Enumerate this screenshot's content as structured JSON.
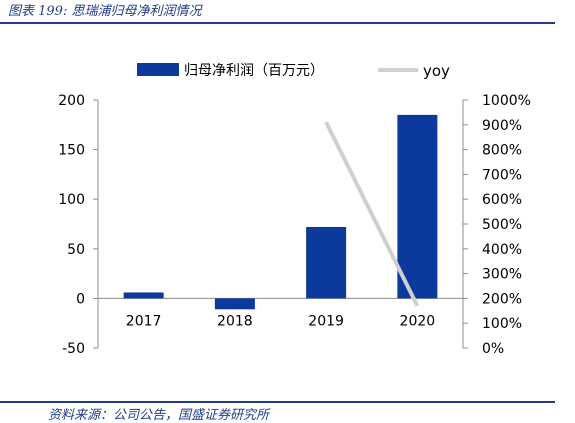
{
  "figure_title": "图表 199: 思瑞浦归母净利润情况",
  "source_note": "资料来源：公司公告，国盛证券研究所",
  "colors": {
    "bar": "#0b3a9c",
    "line": "#cfcfcf",
    "accent": "#1f3d8a"
  },
  "chart_data": {
    "type": "bar",
    "categories": [
      "2017",
      "2018",
      "2019",
      "2020"
    ],
    "series": [
      {
        "name": "归母净利润（百万元）",
        "type": "bar",
        "axis": "left",
        "values": [
          6,
          -11,
          72,
          185
        ]
      },
      {
        "name": "yoy",
        "type": "line",
        "axis": "right",
        "values": [
          null,
          null,
          910,
          170
        ]
      }
    ],
    "left_axis": {
      "min": -50,
      "max": 200,
      "ticks": [
        -50,
        0,
        50,
        100,
        150,
        200
      ]
    },
    "right_axis": {
      "min": 0,
      "max": 1000,
      "ticks": [
        0,
        100,
        200,
        300,
        400,
        500,
        600,
        700,
        800,
        900,
        1000
      ],
      "tick_labels": [
        "0%",
        "100%",
        "200%",
        "300%",
        "400%",
        "500%",
        "600%",
        "700%",
        "800%",
        "900%",
        "1000%"
      ]
    },
    "legend_position": "top",
    "grid": false
  }
}
